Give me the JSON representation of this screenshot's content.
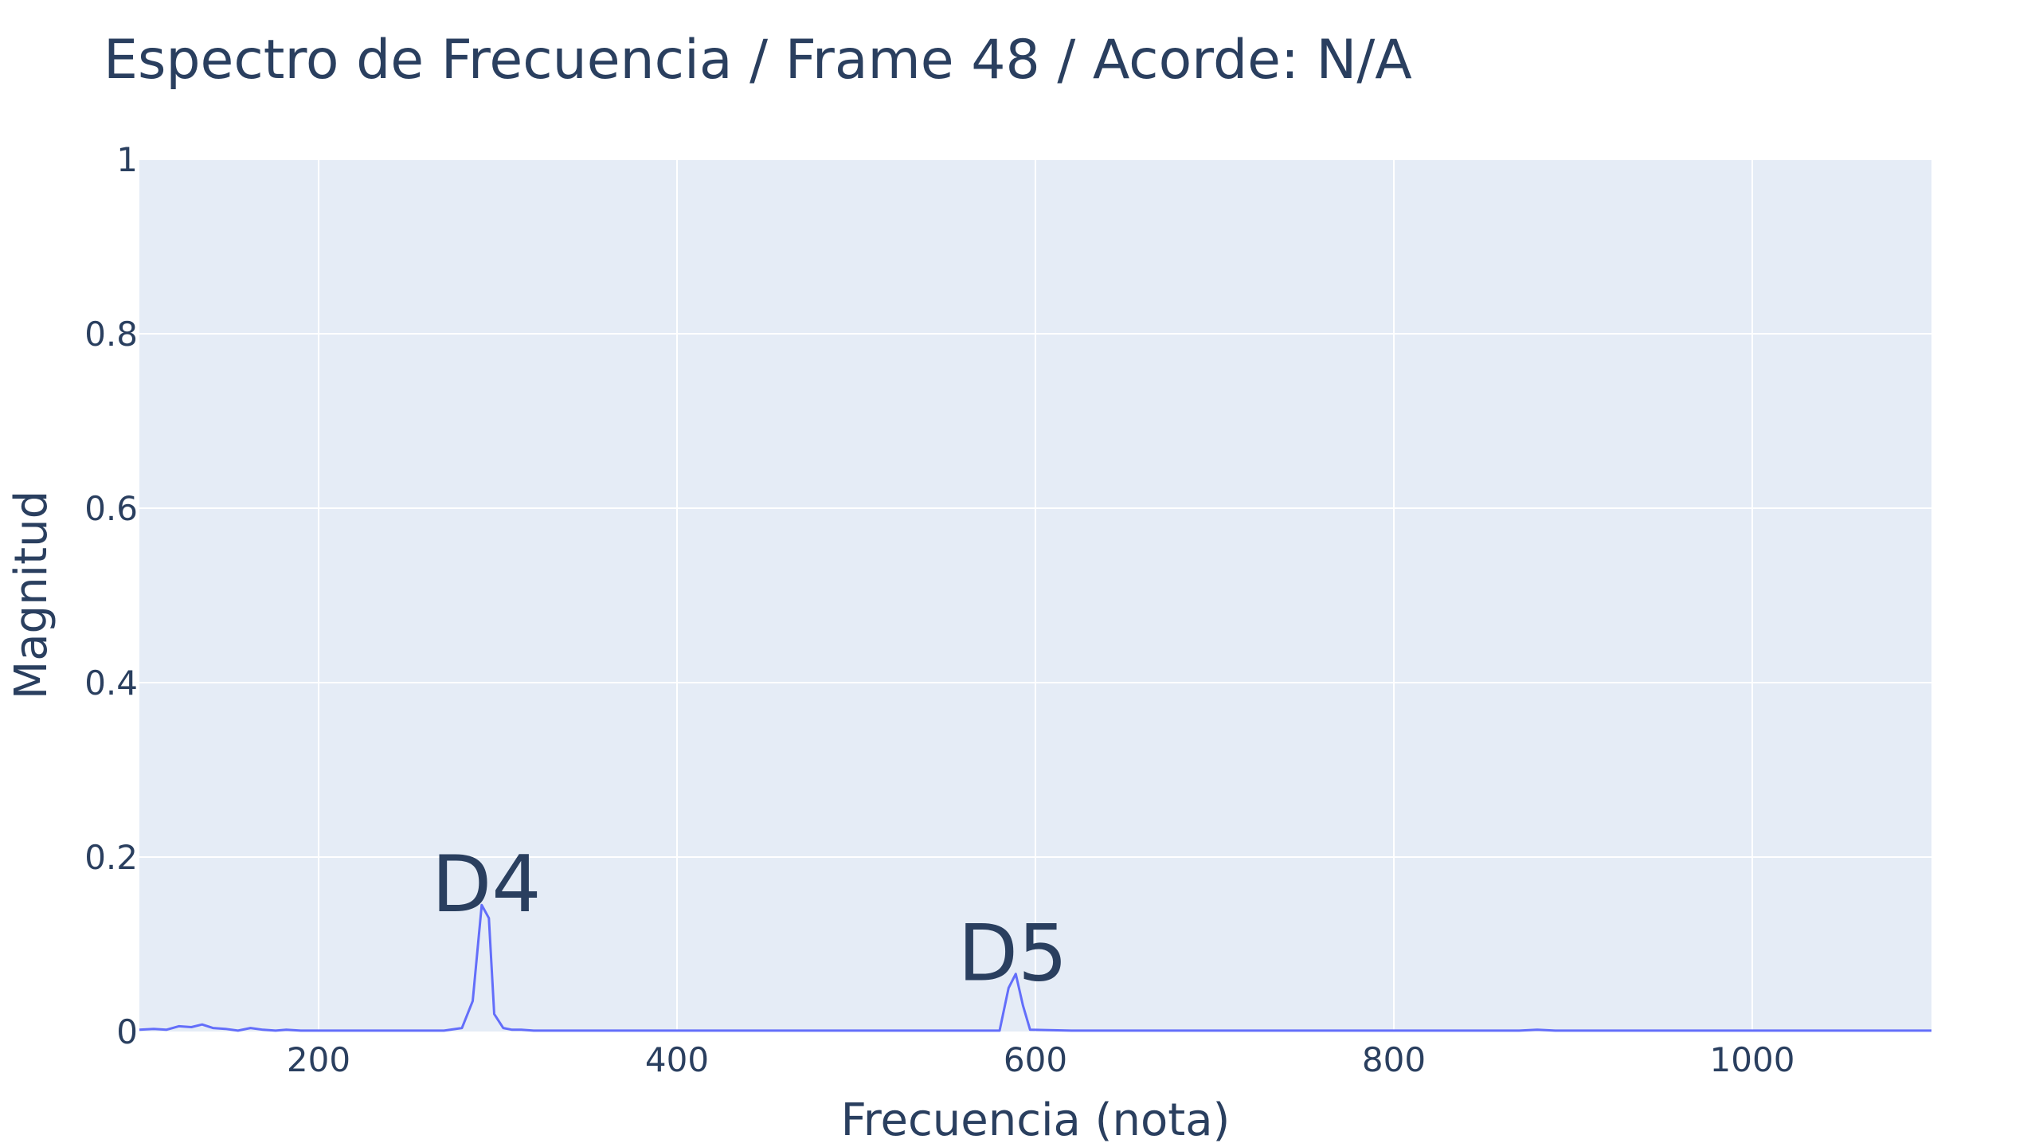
{
  "chart_data": {
    "type": "line",
    "title": "Espectro de Frecuencia / Frame 48 / Acorde: N/A",
    "xlabel": "Frecuencia (nota)",
    "ylabel": "Magnitud",
    "xlim": [
      100,
      1100
    ],
    "ylim": [
      0,
      1
    ],
    "x_ticks": [
      200,
      400,
      600,
      800,
      1000
    ],
    "y_ticks": [
      0,
      0.2,
      0.4,
      0.6,
      0.8,
      1
    ],
    "y_tick_labels": [
      "0",
      "0.2",
      "0.4",
      "0.6",
      "0.8",
      "1"
    ],
    "grid": true,
    "legend": "none",
    "colors": {
      "line": "#636efa",
      "plot_bg": "#e5ecf6",
      "grid": "#ffffff",
      "text": "#2a3f5f"
    },
    "series": [
      {
        "x": [
          100,
          108,
          115,
          122,
          129,
          135,
          141,
          148,
          155,
          162,
          169,
          176,
          182,
          190,
          200,
          220,
          250,
          270,
          280,
          286,
          291,
          295,
          298,
          303,
          308,
          313,
          320,
          340,
          360,
          380,
          400,
          450,
          500,
          540,
          570,
          580,
          585,
          589,
          593,
          597,
          620,
          680,
          700,
          800,
          870,
          880,
          890,
          900,
          1000,
          1100
        ],
        "y": [
          0.002,
          0.003,
          0.002,
          0.006,
          0.005,
          0.008,
          0.004,
          0.003,
          0.001,
          0.004,
          0.002,
          0.001,
          0.002,
          0.001,
          0.001,
          0.001,
          0.001,
          0.001,
          0.004,
          0.035,
          0.145,
          0.13,
          0.02,
          0.004,
          0.002,
          0.002,
          0.001,
          0.001,
          0.001,
          0.001,
          0.001,
          0.001,
          0.001,
          0.001,
          0.001,
          0.001,
          0.05,
          0.066,
          0.03,
          0.002,
          0.001,
          0.001,
          0.001,
          0.001,
          0.001,
          0.002,
          0.001,
          0.001,
          0.001,
          0.001
        ]
      }
    ],
    "annotations": [
      {
        "text": "D4",
        "x": 293.66,
        "y": 0.147
      },
      {
        "text": "D5",
        "x": 587.33,
        "y": 0.068
      }
    ]
  }
}
